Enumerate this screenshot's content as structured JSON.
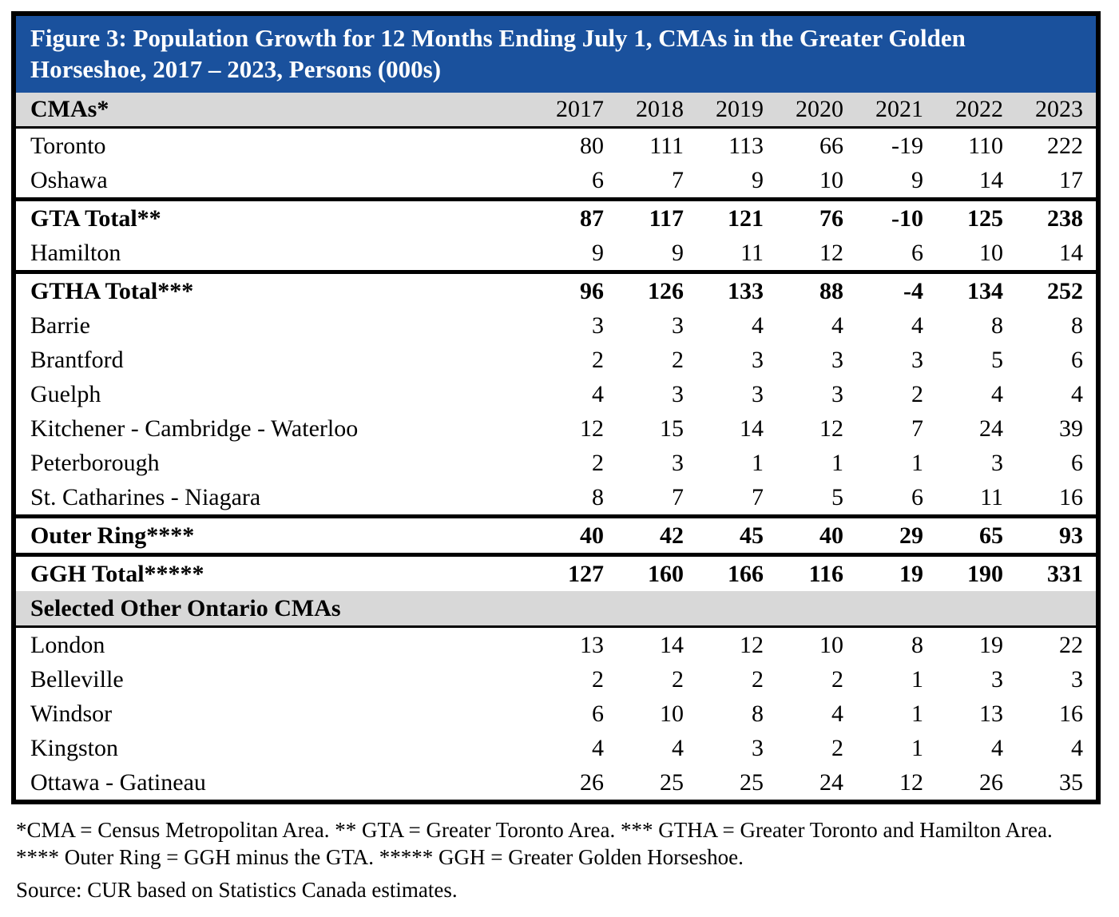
{
  "title": "Figure 3: Population Growth for 12 Months Ending July 1, CMAs in the Greater Golden Horseshoe, 2017 – 2023, Persons (000s)",
  "table": {
    "header": {
      "label": "CMAs*",
      "years": [
        "2017",
        "2018",
        "2019",
        "2020",
        "2021",
        "2022",
        "2023"
      ]
    },
    "rows": [
      {
        "label": "Toronto",
        "values": [
          "80",
          "111",
          "113",
          "66",
          "-19",
          "110",
          "222"
        ],
        "style": "normal"
      },
      {
        "label": "Oshawa",
        "values": [
          "6",
          "7",
          "9",
          "10",
          "9",
          "14",
          "17"
        ],
        "style": "normal",
        "sep_after": true
      },
      {
        "label": "GTA Total**",
        "values": [
          "87",
          "117",
          "121",
          "76",
          "-10",
          "125",
          "238"
        ],
        "style": "bold"
      },
      {
        "label": "Hamilton",
        "values": [
          "9",
          "9",
          "11",
          "12",
          "6",
          "10",
          "14"
        ],
        "style": "normal",
        "sep_after": true
      },
      {
        "label": "GTHA Total***",
        "values": [
          "96",
          "126",
          "133",
          "88",
          "-4",
          "134",
          "252"
        ],
        "style": "bold"
      },
      {
        "label": "Barrie",
        "values": [
          "3",
          "3",
          "4",
          "4",
          "4",
          "8",
          "8"
        ],
        "style": "normal"
      },
      {
        "label": "Brantford",
        "values": [
          "2",
          "2",
          "3",
          "3",
          "3",
          "5",
          "6"
        ],
        "style": "normal"
      },
      {
        "label": "Guelph",
        "values": [
          "4",
          "3",
          "3",
          "3",
          "2",
          "4",
          "4"
        ],
        "style": "normal"
      },
      {
        "label": "Kitchener - Cambridge - Waterloo",
        "values": [
          "12",
          "15",
          "14",
          "12",
          "7",
          "24",
          "39"
        ],
        "style": "normal"
      },
      {
        "label": "Peterborough",
        "values": [
          "2",
          "3",
          "1",
          "1",
          "1",
          "3",
          "6"
        ],
        "style": "normal"
      },
      {
        "label": "St. Catharines - Niagara",
        "values": [
          "8",
          "7",
          "7",
          "5",
          "6",
          "11",
          "16"
        ],
        "style": "normal",
        "sep_after": true
      },
      {
        "label": "Outer Ring****",
        "values": [
          "40",
          "42",
          "45",
          "40",
          "29",
          "65",
          "93"
        ],
        "style": "bold",
        "sep_after": true
      },
      {
        "label": "GGH Total*****",
        "values": [
          "127",
          "160",
          "166",
          "116",
          "19",
          "190",
          "331"
        ],
        "style": "bold"
      },
      {
        "label": "Selected Other Ontario CMAs",
        "style": "section"
      },
      {
        "label": "London",
        "values": [
          "13",
          "14",
          "12",
          "10",
          "8",
          "19",
          "22"
        ],
        "style": "normal"
      },
      {
        "label": "Belleville",
        "values": [
          "2",
          "2",
          "2",
          "2",
          "1",
          "3",
          "3"
        ],
        "style": "normal"
      },
      {
        "label": "Windsor",
        "values": [
          "6",
          "10",
          "8",
          "4",
          "1",
          "13",
          "16"
        ],
        "style": "normal"
      },
      {
        "label": "Kingston",
        "values": [
          "4",
          "4",
          "3",
          "2",
          "1",
          "4",
          "4"
        ],
        "style": "normal"
      },
      {
        "label": "Ottawa - Gatineau",
        "values": [
          "26",
          "25",
          "25",
          "24",
          "12",
          "26",
          "35"
        ],
        "style": "normal"
      }
    ]
  },
  "footnotes": [
    "*CMA = Census Metropolitan Area. ** GTA = Greater Toronto Area. *** GTHA = Greater Toronto and Hamilton Area.",
    "**** Outer Ring = GGH minus the GTA. ***** GGH = Greater Golden Horseshoe."
  ],
  "source": "Source: CUR based on Statistics Canada estimates.",
  "colors": {
    "title_bg": "#1A519D",
    "title_text": "#FFFFFF",
    "header_bg": "#D8D8D8",
    "border": "#000000"
  }
}
